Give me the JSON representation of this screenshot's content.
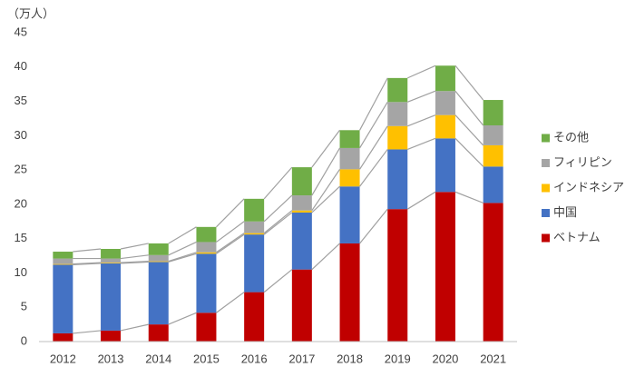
{
  "chart_data": {
    "type": "stacked_bar",
    "y_label": "（万人）",
    "categories": [
      "2012",
      "2013",
      "2014",
      "2015",
      "2016",
      "2017",
      "2018",
      "2019",
      "2020",
      "2021"
    ],
    "series": [
      {
        "name": "ベトナム",
        "color": "#c00000",
        "values": [
          1.2,
          1.6,
          2.5,
          4.2,
          7.2,
          10.5,
          14.3,
          19.3,
          21.8,
          20.2
        ]
      },
      {
        "name": "中国",
        "color": "#4472c4",
        "values": [
          10.0,
          9.8,
          9.1,
          8.6,
          8.4,
          8.3,
          8.3,
          8.7,
          7.8,
          5.3
        ]
      },
      {
        "name": "インドネシア",
        "color": "#ffc000",
        "values": [
          0.1,
          0.1,
          0.1,
          0.2,
          0.2,
          0.3,
          2.5,
          3.4,
          3.4,
          3.1
        ]
      },
      {
        "name": "フィリピン",
        "color": "#a5a5a5",
        "values": [
          0.8,
          0.6,
          0.9,
          1.5,
          1.7,
          2.2,
          3.1,
          3.5,
          3.5,
          2.9
        ]
      },
      {
        "name": "その他",
        "color": "#70ad47",
        "values": [
          1.0,
          1.4,
          1.7,
          2.2,
          3.3,
          4.1,
          2.6,
          3.5,
          3.7,
          3.7
        ]
      }
    ],
    "ylim": [
      0,
      45
    ],
    "yticks": [
      0,
      5,
      10,
      15,
      20,
      25,
      30,
      35,
      40,
      45
    ],
    "grid": false,
    "legend": "right"
  }
}
